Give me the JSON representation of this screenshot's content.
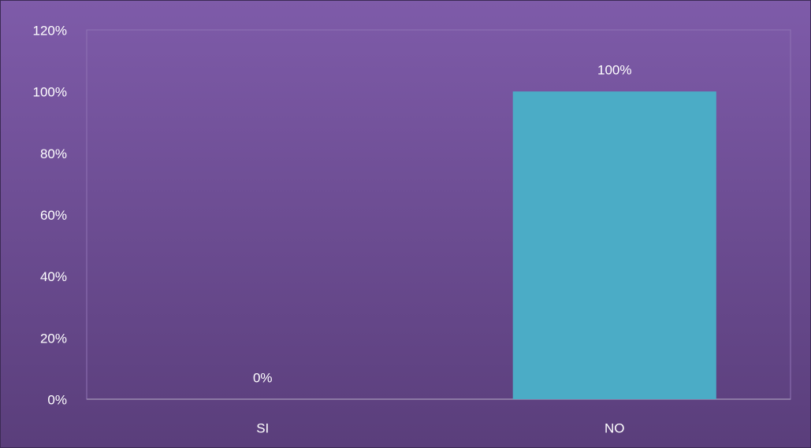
{
  "chart_data": {
    "type": "bar",
    "categories": [
      "SI",
      "NO"
    ],
    "values": [
      0,
      100
    ],
    "value_labels": [
      "0%",
      "100%"
    ],
    "color": "#4bacc6",
    "ylim": [
      0,
      120
    ],
    "yticks": [
      {
        "value": 0,
        "label": "0%"
      },
      {
        "value": 20,
        "label": "20%"
      },
      {
        "value": 40,
        "label": "40%"
      },
      {
        "value": 60,
        "label": "60%"
      },
      {
        "value": 80,
        "label": "80%"
      },
      {
        "value": 100,
        "label": "100%"
      },
      {
        "value": 120,
        "label": "120%"
      }
    ],
    "grid": false
  }
}
